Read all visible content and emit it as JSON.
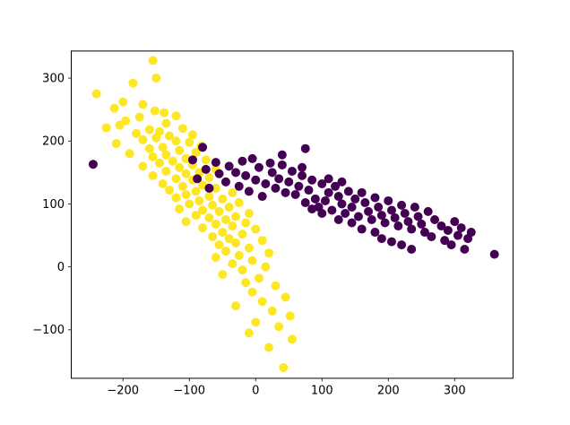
{
  "figure": {
    "background": "#ffffff",
    "axes_color": "#000000",
    "tick_label_color": "#000000"
  },
  "chart_data": {
    "type": "scatter",
    "title": "",
    "xlabel": "",
    "ylabel": "",
    "grid": false,
    "legend": false,
    "xlim": [
      -278,
      388
    ],
    "ylim": [
      -177,
      343
    ],
    "xticks": [
      -200,
      -100,
      0,
      100,
      200,
      300
    ],
    "xtick_labels": [
      "−200",
      "−100",
      "0",
      "100",
      "200",
      "300"
    ],
    "yticks": [
      -100,
      0,
      100,
      200,
      300
    ],
    "ytick_labels": [
      "−100",
      "0",
      "100",
      "200",
      "300"
    ],
    "marker_radius_px": 5,
    "series": [
      {
        "name": "cluster-yellow",
        "color": "#fde725",
        "points": [
          [
            -155,
            328
          ],
          [
            -150,
            300
          ],
          [
            -185,
            292
          ],
          [
            -240,
            275
          ],
          [
            -200,
            262
          ],
          [
            -170,
            258
          ],
          [
            -213,
            252
          ],
          [
            -152,
            248
          ],
          [
            -138,
            245
          ],
          [
            -120,
            240
          ],
          [
            -175,
            238
          ],
          [
            -196,
            232
          ],
          [
            -135,
            228
          ],
          [
            -205,
            225
          ],
          [
            -225,
            221
          ],
          [
            -110,
            220
          ],
          [
            -160,
            218
          ],
          [
            -145,
            215
          ],
          [
            -180,
            212
          ],
          [
            -95,
            210
          ],
          [
            -130,
            208
          ],
          [
            -150,
            205
          ],
          [
            -170,
            202
          ],
          [
            -120,
            200
          ],
          [
            -100,
            198
          ],
          [
            -210,
            196
          ],
          [
            -82,
            192
          ],
          [
            -140,
            190
          ],
          [
            -160,
            188
          ],
          [
            -115,
            185
          ],
          [
            -90,
            182
          ],
          [
            -190,
            180
          ],
          [
            -135,
            178
          ],
          [
            -155,
            175
          ],
          [
            -105,
            172
          ],
          [
            -75,
            170
          ],
          [
            -125,
            168
          ],
          [
            -145,
            165
          ],
          [
            -95,
            162
          ],
          [
            -170,
            160
          ],
          [
            -115,
            158
          ],
          [
            -60,
            155
          ],
          [
            -135,
            152
          ],
          [
            -85,
            150
          ],
          [
            -105,
            148
          ],
          [
            -155,
            145
          ],
          [
            -70,
            142
          ],
          [
            -120,
            140
          ],
          [
            -95,
            138
          ],
          [
            -45,
            135
          ],
          [
            -140,
            132
          ],
          [
            -80,
            130
          ],
          [
            -110,
            128
          ],
          [
            -60,
            125
          ],
          [
            -130,
            122
          ],
          [
            -90,
            120
          ],
          [
            -35,
            118
          ],
          [
            -105,
            115
          ],
          [
            -70,
            112
          ],
          [
            -120,
            110
          ],
          [
            -50,
            108
          ],
          [
            -85,
            105
          ],
          [
            -25,
            102
          ],
          [
            -100,
            100
          ],
          [
            -65,
            98
          ],
          [
            -40,
            95
          ],
          [
            -115,
            92
          ],
          [
            -80,
            90
          ],
          [
            -55,
            88
          ],
          [
            -10,
            85
          ],
          [
            -90,
            82
          ],
          [
            -30,
            80
          ],
          [
            -70,
            78
          ],
          [
            -45,
            75
          ],
          [
            -105,
            72
          ],
          [
            -15,
            70
          ],
          [
            -60,
            68
          ],
          [
            -35,
            65
          ],
          [
            -80,
            62
          ],
          [
            0,
            60
          ],
          [
            -50,
            55
          ],
          [
            -20,
            52
          ],
          [
            -65,
            48
          ],
          [
            -40,
            45
          ],
          [
            10,
            42
          ],
          [
            -30,
            38
          ],
          [
            -55,
            35
          ],
          [
            -10,
            30
          ],
          [
            -45,
            25
          ],
          [
            20,
            22
          ],
          [
            -25,
            18
          ],
          [
            -60,
            15
          ],
          [
            -5,
            10
          ],
          [
            -35,
            5
          ],
          [
            15,
            0
          ],
          [
            -20,
            -5
          ],
          [
            -50,
            -12
          ],
          [
            5,
            -18
          ],
          [
            -15,
            -25
          ],
          [
            30,
            -30
          ],
          [
            -5,
            -40
          ],
          [
            45,
            -48
          ],
          [
            10,
            -55
          ],
          [
            -30,
            -62
          ],
          [
            25,
            -70
          ],
          [
            52,
            -78
          ],
          [
            0,
            -88
          ],
          [
            35,
            -95
          ],
          [
            -10,
            -105
          ],
          [
            55,
            -115
          ],
          [
            20,
            -128
          ],
          [
            42,
            -160
          ]
        ]
      },
      {
        "name": "cluster-purple",
        "color": "#440154",
        "points": [
          [
            -245,
            163
          ],
          [
            -80,
            190
          ],
          [
            -95,
            170
          ],
          [
            -60,
            166
          ],
          [
            -40,
            160
          ],
          [
            -75,
            155
          ],
          [
            -20,
            168
          ],
          [
            -5,
            172
          ],
          [
            -55,
            148
          ],
          [
            -30,
            150
          ],
          [
            -88,
            140
          ],
          [
            -15,
            145
          ],
          [
            5,
            158
          ],
          [
            22,
            165
          ],
          [
            -45,
            135
          ],
          [
            0,
            138
          ],
          [
            25,
            150
          ],
          [
            40,
            162
          ],
          [
            -25,
            128
          ],
          [
            15,
            132
          ],
          [
            35,
            140
          ],
          [
            55,
            152
          ],
          [
            -10,
            120
          ],
          [
            30,
            125
          ],
          [
            50,
            135
          ],
          [
            70,
            145
          ],
          [
            75,
            188
          ],
          [
            45,
            118
          ],
          [
            65,
            128
          ],
          [
            85,
            138
          ],
          [
            10,
            112
          ],
          [
            60,
            115
          ],
          [
            80,
            122
          ],
          [
            100,
            132
          ],
          [
            90,
            108
          ],
          [
            110,
            118
          ],
          [
            120,
            128
          ],
          [
            75,
            102
          ],
          [
            105,
            105
          ],
          [
            125,
            112
          ],
          [
            140,
            120
          ],
          [
            95,
            95
          ],
          [
            130,
            100
          ],
          [
            150,
            108
          ],
          [
            160,
            118
          ],
          [
            115,
            90
          ],
          [
            145,
            95
          ],
          [
            165,
            102
          ],
          [
            180,
            110
          ],
          [
            135,
            85
          ],
          [
            170,
            88
          ],
          [
            185,
            95
          ],
          [
            200,
            105
          ],
          [
            155,
            80
          ],
          [
            190,
            82
          ],
          [
            205,
            90
          ],
          [
            220,
            98
          ],
          [
            175,
            75
          ],
          [
            210,
            78
          ],
          [
            225,
            85
          ],
          [
            240,
            95
          ],
          [
            195,
            70
          ],
          [
            230,
            72
          ],
          [
            245,
            80
          ],
          [
            260,
            88
          ],
          [
            215,
            65
          ],
          [
            250,
            68
          ],
          [
            270,
            75
          ],
          [
            235,
            60
          ],
          [
            280,
            65
          ],
          [
            300,
            72
          ],
          [
            255,
            55
          ],
          [
            290,
            58
          ],
          [
            310,
            62
          ],
          [
            265,
            48
          ],
          [
            305,
            50
          ],
          [
            325,
            55
          ],
          [
            285,
            42
          ],
          [
            320,
            45
          ],
          [
            295,
            35
          ],
          [
            315,
            28
          ],
          [
            360,
            20
          ],
          [
            205,
            40
          ],
          [
            220,
            35
          ],
          [
            190,
            45
          ],
          [
            235,
            28
          ],
          [
            180,
            55
          ],
          [
            160,
            60
          ],
          [
            145,
            70
          ],
          [
            125,
            75
          ],
          [
            100,
            85
          ],
          [
            85,
            92
          ],
          [
            70,
            158
          ],
          [
            40,
            178
          ],
          [
            110,
            140
          ],
          [
            130,
            135
          ],
          [
            -70,
            125
          ]
        ]
      }
    ]
  }
}
